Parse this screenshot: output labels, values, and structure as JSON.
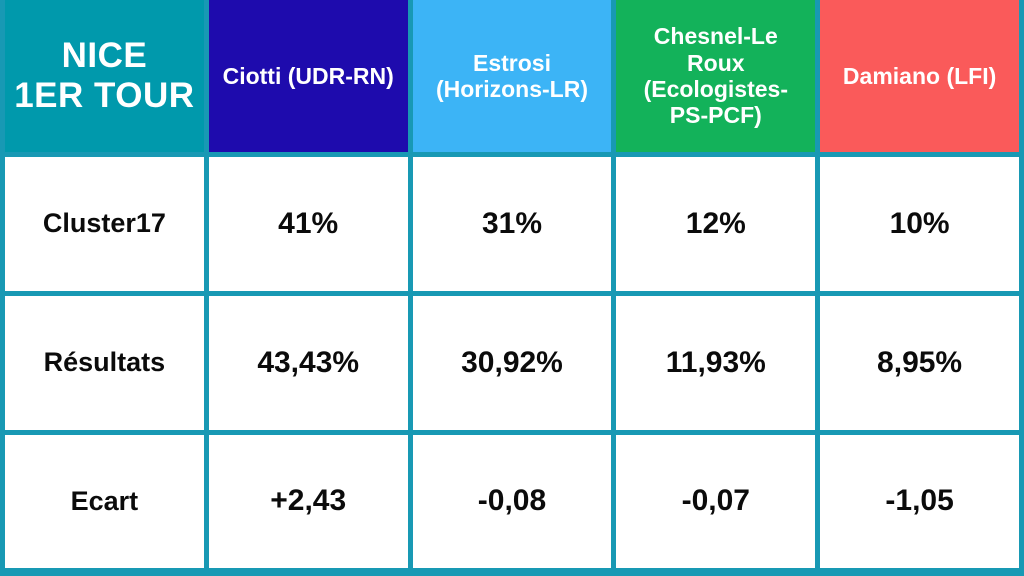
{
  "theme": {
    "teal": "#0099AC",
    "grid": "#1899B4",
    "col-ciotti": "#1E0BAD",
    "col-estrosi": "#3CB4F6",
    "col-chesnel": "#13B25A",
    "col-damiano": "#FA5A5A",
    "header-text": "#FFFFFF",
    "body-text": "#0B0B0B",
    "cell-bg": "#FFFFFF"
  },
  "display": {
    "corner": [
      "NICE",
      "1ER TOUR"
    ],
    "headers": [
      [
        "Ciotti (UDR-RN)"
      ],
      [
        "Estrosi",
        "(Horizons-LR)"
      ],
      [
        "Chesnel-Le",
        "Roux",
        "(Ecologistes-",
        "PS-PCF)"
      ],
      [
        "Damiano (LFI)"
      ]
    ]
  },
  "chart_data": {
    "type": "table",
    "title": "NICE 1ER TOUR",
    "columns": [
      "Ciotti (UDR-RN)",
      "Estrosi (Horizons-LR)",
      "Chesnel-Le Roux (Ecologistes-PS-PCF)",
      "Damiano (LFI)"
    ],
    "column_colors": [
      "#1E0BAD",
      "#3CB4F6",
      "#13B25A",
      "#FA5A5A"
    ],
    "rows": [
      {
        "label": "Cluster17",
        "values": [
          "41%",
          "31%",
          "12%",
          "10%"
        ]
      },
      {
        "label": "Résultats",
        "values": [
          "43,43%",
          "30,92%",
          "11,93%",
          "8,95%"
        ]
      },
      {
        "label": "Ecart",
        "values": [
          "+2,43",
          "-0,08",
          "-0,07",
          "-1,05"
        ]
      }
    ]
  }
}
